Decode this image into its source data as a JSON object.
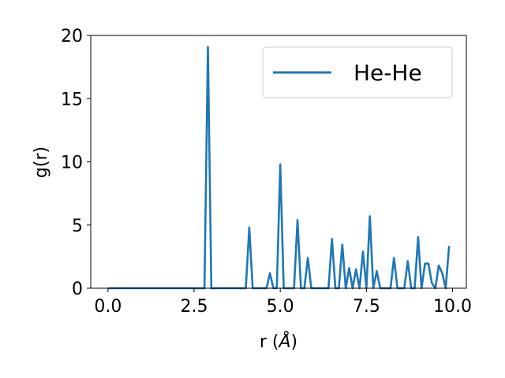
{
  "chart_data": {
    "type": "line",
    "title": "",
    "xlabel_prefix": "r (",
    "xlabel_unit": "Å",
    "xlabel_suffix": ")",
    "ylabel": "g(r)",
    "xlim": [
      -0.5,
      10.4
    ],
    "ylim": [
      0,
      20
    ],
    "xticks": [
      0.0,
      2.5,
      5.0,
      7.5,
      10.0
    ],
    "xtick_labels": [
      "0.0",
      "2.5",
      "5.0",
      "7.5",
      "10.0"
    ],
    "yticks": [
      0,
      5,
      10,
      15,
      20
    ],
    "ytick_labels": [
      "0",
      "5",
      "10",
      "15",
      "20"
    ],
    "grid": false,
    "legend_position": "top-right",
    "series": [
      {
        "name": "He-He",
        "color": "#1f77b4",
        "x": [
          0.0,
          0.1,
          0.2,
          0.3,
          0.4,
          0.5,
          0.6,
          0.7,
          0.8,
          0.9,
          1.0,
          1.1,
          1.2,
          1.3,
          1.4,
          1.5,
          1.6,
          1.7,
          1.8,
          1.9,
          2.0,
          2.1,
          2.2,
          2.3,
          2.4,
          2.5,
          2.6,
          2.7,
          2.8,
          2.9,
          3.0,
          3.1,
          3.2,
          3.3,
          3.4,
          3.5,
          3.6,
          3.7,
          3.8,
          3.9,
          4.0,
          4.1,
          4.2,
          4.3,
          4.4,
          4.5,
          4.6,
          4.7,
          4.8,
          4.9,
          5.0,
          5.1,
          5.2,
          5.3,
          5.4,
          5.5,
          5.6,
          5.7,
          5.8,
          5.9,
          6.0,
          6.1,
          6.2,
          6.3,
          6.4,
          6.5,
          6.6,
          6.7,
          6.8,
          6.9,
          7.0,
          7.1,
          7.2,
          7.3,
          7.4,
          7.5,
          7.6,
          7.7,
          7.8,
          7.9,
          8.0,
          8.1,
          8.2,
          8.3,
          8.4,
          8.5,
          8.6,
          8.7,
          8.8,
          8.9,
          9.0,
          9.1,
          9.2,
          9.3,
          9.4,
          9.5,
          9.6,
          9.7,
          9.8,
          9.9
        ],
        "y": [
          0,
          0,
          0,
          0,
          0,
          0,
          0,
          0,
          0,
          0,
          0,
          0,
          0,
          0,
          0,
          0,
          0,
          0,
          0,
          0,
          0,
          0,
          0,
          0,
          0,
          0,
          0,
          0,
          0,
          19.1,
          0,
          0,
          0,
          0,
          0,
          0,
          0,
          0,
          0,
          0,
          0,
          4.8,
          0,
          0,
          0,
          0,
          0,
          1.2,
          0,
          0,
          9.8,
          0,
          0,
          0,
          0,
          5.4,
          0,
          0,
          2.4,
          0,
          0,
          0,
          0,
          0,
          0,
          3.9,
          0,
          0,
          3.45,
          0,
          1.6,
          0,
          1.5,
          0,
          2.9,
          0,
          5.7,
          0,
          1.35,
          0,
          0,
          0,
          0,
          2.4,
          0,
          0,
          0,
          2.15,
          0,
          0,
          4.05,
          0,
          1.95,
          1.95,
          0.4,
          0,
          1.8,
          1.2,
          0,
          3.35
        ]
      }
    ]
  }
}
